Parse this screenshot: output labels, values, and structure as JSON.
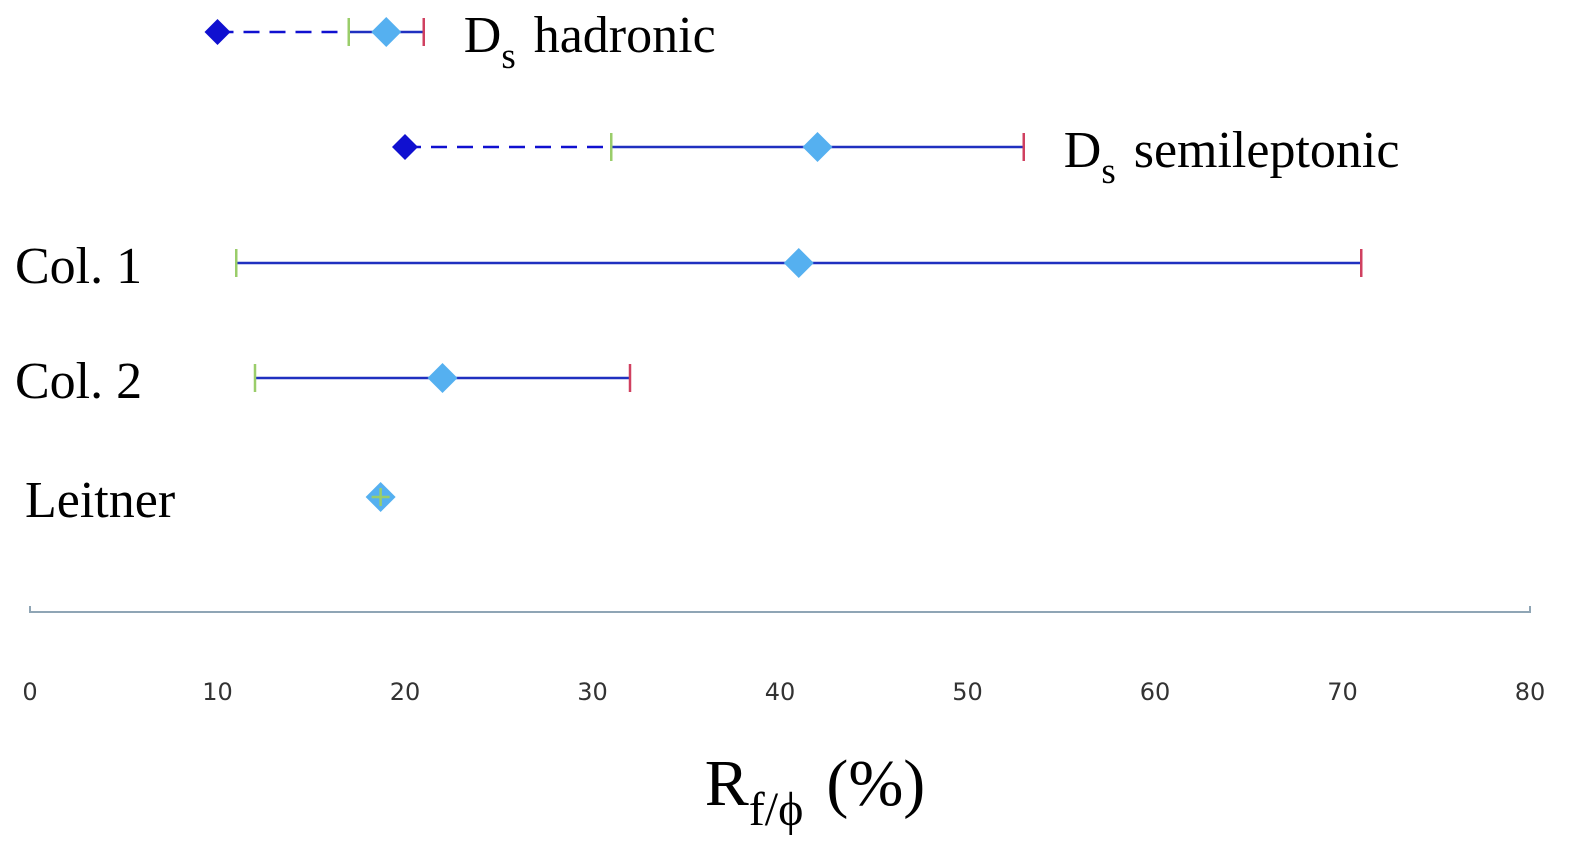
{
  "chart_data": {
    "type": "range",
    "x_label": [
      {
        "text": "R"
      },
      {
        "text": "f/ϕ",
        "sub": true
      },
      {
        "text": "(%)"
      }
    ],
    "xlim": [
      0,
      80
    ],
    "xticks": [
      0,
      10,
      20,
      30,
      40,
      50,
      60,
      70,
      80
    ],
    "marker_color": "#55b0f0",
    "limit_color": "#1010d0",
    "bar_color": "#2030c0",
    "low_cap_color": "#9acd6a",
    "high_cap_color": "#d04060",
    "axis_color": "#8fa5b5",
    "series": [
      {
        "name": [
          {
            "text": "D"
          },
          {
            "text": "s",
            "sub": true
          },
          {
            "text": "hadronic"
          }
        ],
        "label_position": "right",
        "value": 19,
        "low": 17,
        "high": 21,
        "lower_limit": 10
      },
      {
        "name": [
          {
            "text": "D"
          },
          {
            "text": "s",
            "sub": true
          },
          {
            "text": "semileptonic"
          }
        ],
        "label_position": "right",
        "value": 42,
        "low": 31,
        "high": 53,
        "lower_limit": 20
      },
      {
        "name": [
          {
            "text": "Col. 1"
          }
        ],
        "label_position": "left",
        "value": 41,
        "low": 11,
        "high": 71
      },
      {
        "name": [
          {
            "text": "Col. 2"
          }
        ],
        "label_position": "left",
        "value": 22,
        "low": 12,
        "high": 32
      },
      {
        "name": [
          {
            "text": "Leitner"
          }
        ],
        "label_position": "left",
        "value": 18.7
      }
    ]
  }
}
